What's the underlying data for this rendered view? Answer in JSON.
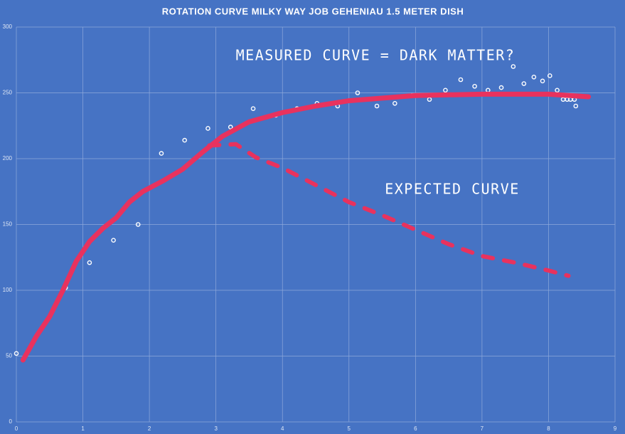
{
  "chart_data": {
    "type": "scatter",
    "title": "ROTATION CURVE MILKY WAY JOB GEHENIAU 1.5 METER DISH",
    "annotations": [
      "MEASURED CURVE = DARK MATTER?",
      "EXPECTED CURVE"
    ],
    "xlim": [
      0,
      9
    ],
    "xticks": [
      0,
      1,
      2,
      3,
      4,
      5,
      6,
      7,
      8,
      9
    ],
    "ylim": [
      0,
      300
    ],
    "yticks": [
      0,
      50,
      100,
      150,
      200,
      250,
      300
    ],
    "grid": true,
    "series": [
      {
        "kind": "points",
        "color": "#ffffff",
        "x": [
          0,
          0.74,
          1.1,
          1.46,
          1.83,
          2.18,
          2.53,
          2.88,
          3.22,
          3.56,
          3.9,
          4.22,
          4.52,
          4.83,
          5.13,
          5.42,
          5.69,
          5.95,
          6.21,
          6.45,
          6.68,
          6.89,
          7.09,
          7.29,
          7.47,
          7.63,
          7.78,
          7.91,
          8.02,
          8.13,
          8.22,
          8.28,
          8.33,
          8.39,
          8.41
        ],
        "values": [
          52,
          102,
          121,
          138,
          150,
          204,
          214,
          223,
          224,
          238,
          233,
          238,
          242,
          240,
          250,
          240,
          242,
          248,
          245,
          252,
          260,
          255,
          252,
          254,
          270,
          257,
          262,
          259,
          263,
          252,
          245,
          245,
          245,
          245,
          240
        ]
      },
      {
        "kind": "solid",
        "color": "#e8325e",
        "x": [
          0.1,
          0.3,
          0.5,
          0.7,
          0.9,
          1.1,
          1.3,
          1.5,
          1.7,
          1.9,
          2.2,
          2.5,
          2.8,
          3.1,
          3.5,
          4,
          4.5,
          5,
          6,
          7,
          8,
          8.6
        ],
        "values": [
          47,
          65,
          80,
          100,
          122,
          137,
          147,
          155,
          167,
          175,
          183,
          192,
          205,
          217,
          228,
          235,
          240,
          244,
          248,
          249,
          249,
          247
        ]
      },
      {
        "kind": "dashed",
        "color": "#e8325e",
        "x": [
          2.9,
          3.3,
          3.6,
          4,
          4.5,
          5,
          5.5,
          6,
          6.5,
          7,
          7.5,
          8,
          8.3
        ],
        "values": [
          210,
          211,
          201,
          193,
          180,
          167,
          157,
          146,
          135,
          126,
          121,
          115,
          111
        ]
      }
    ]
  }
}
